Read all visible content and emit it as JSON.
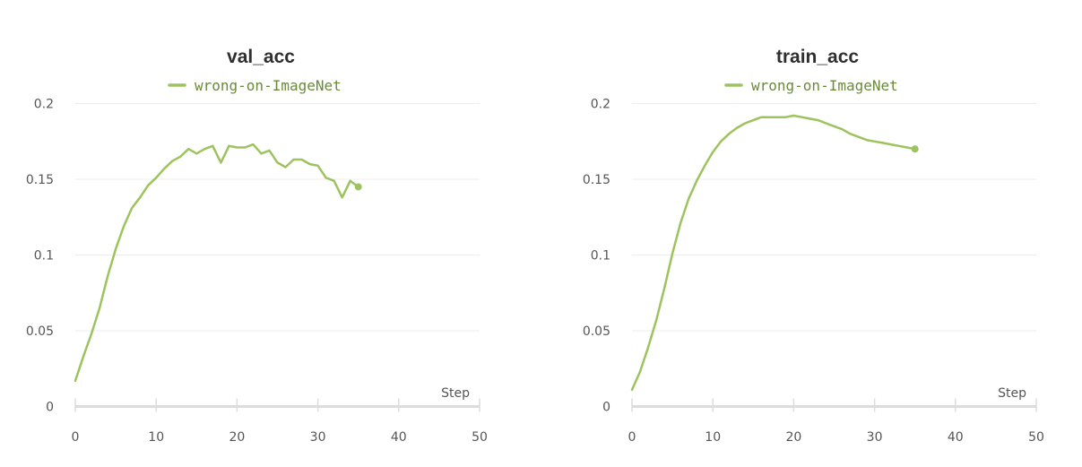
{
  "chart_data": [
    {
      "type": "line",
      "title": "val_acc",
      "xlabel": "Step",
      "ylabel": "",
      "xlim": [
        0,
        50
      ],
      "ylim": [
        0,
        0.2
      ],
      "x_ticks": [
        "0",
        "10",
        "20",
        "30",
        "40",
        "50"
      ],
      "y_ticks": [
        "0",
        "0.05",
        "0.1",
        "0.15",
        "0.2"
      ],
      "grid": true,
      "legend_position": "top-center",
      "series": [
        {
          "name": "wrong-on-ImageNet",
          "color": "#9dc35f",
          "x": [
            0,
            1,
            2,
            3,
            4,
            5,
            6,
            7,
            8,
            9,
            10,
            11,
            12,
            13,
            14,
            15,
            16,
            17,
            18,
            19,
            20,
            21,
            22,
            23,
            24,
            25,
            26,
            27,
            28,
            29,
            30,
            31,
            32,
            33,
            34,
            35
          ],
          "y": [
            0.017,
            0.033,
            0.048,
            0.065,
            0.086,
            0.104,
            0.119,
            0.131,
            0.138,
            0.146,
            0.151,
            0.157,
            0.162,
            0.165,
            0.17,
            0.167,
            0.17,
            0.172,
            0.161,
            0.172,
            0.171,
            0.171,
            0.173,
            0.167,
            0.169,
            0.161,
            0.158,
            0.163,
            0.163,
            0.16,
            0.159,
            0.151,
            0.149,
            0.138,
            0.149,
            0.145
          ]
        }
      ]
    },
    {
      "type": "line",
      "title": "train_acc",
      "xlabel": "Step",
      "ylabel": "",
      "xlim": [
        0,
        50
      ],
      "ylim": [
        0,
        0.2
      ],
      "x_ticks": [
        "0",
        "10",
        "20",
        "30",
        "40",
        "50"
      ],
      "y_ticks": [
        "0",
        "0.05",
        "0.1",
        "0.15",
        "0.2"
      ],
      "grid": true,
      "legend_position": "top-center",
      "series": [
        {
          "name": "wrong-on-ImageNet",
          "color": "#9dc35f",
          "x": [
            0,
            1,
            2,
            3,
            4,
            5,
            6,
            7,
            8,
            9,
            10,
            11,
            12,
            13,
            14,
            15,
            16,
            17,
            18,
            19,
            20,
            21,
            22,
            23,
            24,
            25,
            26,
            27,
            28,
            29,
            30,
            31,
            32,
            33,
            34,
            35
          ],
          "y": [
            0.011,
            0.023,
            0.039,
            0.057,
            0.078,
            0.101,
            0.121,
            0.137,
            0.149,
            0.159,
            0.168,
            0.175,
            0.18,
            0.184,
            0.187,
            0.189,
            0.191,
            0.191,
            0.191,
            0.191,
            0.192,
            0.191,
            0.19,
            0.189,
            0.187,
            0.185,
            0.183,
            0.18,
            0.178,
            0.176,
            0.175,
            0.174,
            0.173,
            0.172,
            0.171,
            0.17
          ]
        }
      ]
    }
  ]
}
